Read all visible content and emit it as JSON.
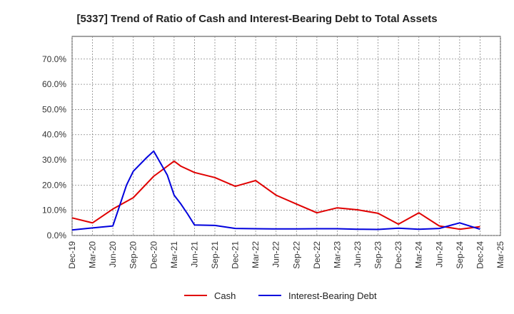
{
  "chart_data": {
    "type": "line",
    "title": "[5337]  Trend of Ratio of Cash and Interest-Bearing Debt to Total Assets",
    "xlabel": "",
    "ylabel": "",
    "x_tick_labels": [
      "Dec-19",
      "Mar-20",
      "Jun-20",
      "Sep-20",
      "Dec-20",
      "Mar-21",
      "Jun-21",
      "Sep-21",
      "Dec-21",
      "Mar-22",
      "Jun-22",
      "Sep-22",
      "Dec-22",
      "Mar-23",
      "Jun-23",
      "Sep-23",
      "Dec-23",
      "Mar-24",
      "Jun-24",
      "Sep-24",
      "Dec-24",
      "Mar-25"
    ],
    "y_tick_labels": [
      "0.0%",
      "10.0%",
      "20.0%",
      "30.0%",
      "40.0%",
      "50.0%",
      "60.0%",
      "70.0%"
    ],
    "ylim": [
      0,
      79
    ],
    "grid": true,
    "legend_position": "bottom-center",
    "series": [
      {
        "name": "Cash",
        "color": "#e00000",
        "points": [
          [
            "Dec-19",
            7.0
          ],
          [
            "Mar-20",
            5.0
          ],
          [
            "Jun-20",
            10.5
          ],
          [
            "Sep-20",
            15.0
          ],
          [
            "Dec-20",
            23.5
          ],
          [
            "Mar-21",
            29.5
          ],
          [
            "Apr-21",
            27.5
          ],
          [
            "Jun-21",
            25.0
          ],
          [
            "Sep-21",
            23.0
          ],
          [
            "Dec-21",
            19.5
          ],
          [
            "Mar-22",
            21.8
          ],
          [
            "Jun-22",
            16.0
          ],
          [
            "Sep-22",
            12.5
          ],
          [
            "Dec-22",
            9.0
          ],
          [
            "Mar-23",
            11.0
          ],
          [
            "Jun-23",
            10.2
          ],
          [
            "Sep-23",
            8.8
          ],
          [
            "Dec-23",
            4.5
          ],
          [
            "Mar-24",
            9.0
          ],
          [
            "Jun-24",
            3.8
          ],
          [
            "Sep-24",
            2.5
          ],
          [
            "Dec-24",
            3.5
          ]
        ]
      },
      {
        "name": "Interest-Bearing Debt",
        "color": "#0000dd",
        "points": [
          [
            "Dec-19",
            2.2
          ],
          [
            "Mar-20",
            3.0
          ],
          [
            "Jun-20",
            3.8
          ],
          [
            "Aug-20",
            20.0
          ],
          [
            "Sep-20",
            25.5
          ],
          [
            "Nov-20",
            31.0
          ],
          [
            "Dec-20",
            33.5
          ],
          [
            "Feb-21",
            24.0
          ],
          [
            "Mar-21",
            16.0
          ],
          [
            "Apr-21",
            12.5
          ],
          [
            "May-21",
            8.5
          ],
          [
            "Jun-21",
            4.2
          ],
          [
            "Sep-21",
            4.0
          ],
          [
            "Dec-21",
            2.8
          ],
          [
            "Mar-22",
            2.7
          ],
          [
            "Jun-22",
            2.6
          ],
          [
            "Sep-22",
            2.6
          ],
          [
            "Dec-22",
            2.7
          ],
          [
            "Mar-23",
            2.7
          ],
          [
            "Jun-23",
            2.5
          ],
          [
            "Sep-23",
            2.4
          ],
          [
            "Dec-23",
            2.9
          ],
          [
            "Mar-24",
            2.5
          ],
          [
            "Jun-24",
            2.8
          ],
          [
            "Sep-24",
            5.0
          ],
          [
            "Dec-24",
            2.5
          ]
        ]
      }
    ]
  }
}
